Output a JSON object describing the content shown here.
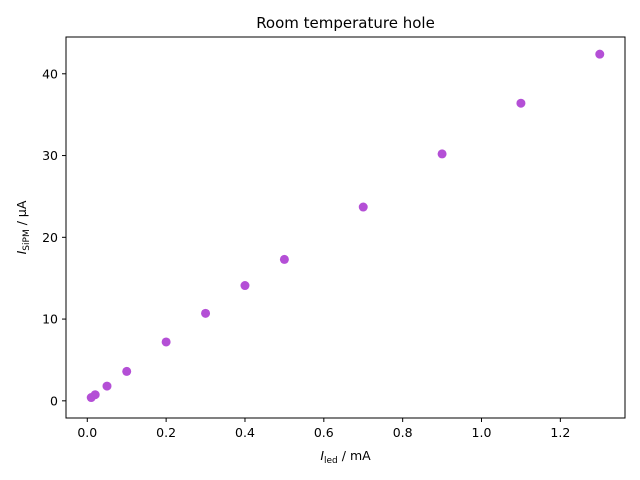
{
  "chart_data": {
    "type": "scatter",
    "title": "Room temperature hole",
    "xlabel": {
      "symbol": "I",
      "subscript": "led",
      "unit": " / mA"
    },
    "ylabel": {
      "symbol": "I",
      "subscript": "SiPM",
      "unit": " / μA"
    },
    "xlim": [
      -0.054,
      1.364
    ],
    "ylim": [
      -2.1,
      44.5
    ],
    "xticks": [
      0.0,
      0.2,
      0.4,
      0.6,
      0.8,
      1.0,
      1.2
    ],
    "xtick_labels": [
      "0.0",
      "0.2",
      "0.4",
      "0.6",
      "0.8",
      "1.0",
      "1.2"
    ],
    "yticks": [
      0,
      10,
      20,
      30,
      40
    ],
    "ytick_labels": [
      "0",
      "10",
      "20",
      "30",
      "40"
    ],
    "grid": false,
    "legend": "none",
    "marker_color": "#b44fd6",
    "series": [
      {
        "x": [
          0.01,
          0.02,
          0.05,
          0.1,
          0.2,
          0.3,
          0.4,
          0.5,
          0.7,
          0.9,
          1.1,
          1.3
        ],
        "y": [
          0.4,
          0.75,
          1.8,
          3.6,
          7.2,
          10.7,
          14.1,
          17.3,
          23.7,
          30.2,
          36.4,
          42.4
        ]
      }
    ]
  }
}
